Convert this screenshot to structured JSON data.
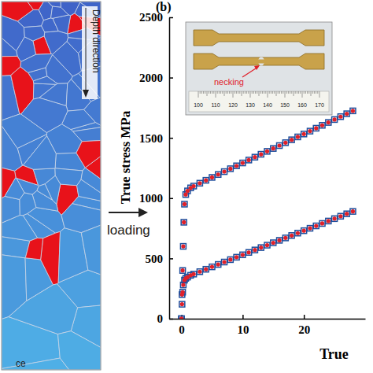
{
  "chart_data": {
    "type": "scatter",
    "panel_label": "(b)",
    "y_label": "True stress MPa",
    "x_label": "True",
    "xlim": [
      -2,
      30
    ],
    "xticks": [
      0,
      10,
      20
    ],
    "ylim": [
      0,
      2500
    ],
    "yticks": [
      0,
      500,
      1000,
      1500,
      2000,
      2500
    ],
    "grid": false,
    "series": [
      {
        "color": "#1f4e9c",
        "marker": "square",
        "x": [
          0,
          0.1,
          0.2,
          0.3,
          0.4,
          0.5,
          0.7,
          1,
          1.5,
          2,
          3,
          4,
          5,
          6,
          7,
          8,
          9,
          10,
          11,
          12,
          13,
          14,
          15,
          16,
          17,
          18,
          19,
          20,
          21,
          22,
          23,
          24,
          25,
          26,
          27,
          28
        ],
        "values": [
          0,
          200,
          400,
          600,
          800,
          950,
          1030,
          1060,
          1085,
          1100,
          1124,
          1148,
          1172,
          1196,
          1220,
          1244,
          1268,
          1292,
          1316,
          1340,
          1364,
          1388,
          1412,
          1436,
          1460,
          1484,
          1508,
          1532,
          1556,
          1580,
          1604,
          1628,
          1652,
          1676,
          1700,
          1724
        ]
      },
      {
        "color": "#1f4e9c",
        "marker": "square",
        "x": [
          0,
          0.1,
          0.2,
          0.3,
          0.5,
          0.7,
          1,
          1.5,
          2,
          3,
          4,
          5,
          6,
          7,
          8,
          9,
          10,
          11,
          12,
          13,
          14,
          15,
          16,
          17,
          18,
          19,
          20,
          21,
          22,
          23,
          24,
          25,
          26,
          27,
          28
        ],
        "values": [
          0,
          120,
          220,
          280,
          320,
          335,
          345,
          360,
          370,
          390,
          410,
          430,
          450,
          470,
          490,
          510,
          530,
          550,
          570,
          590,
          610,
          630,
          650,
          670,
          690,
          710,
          730,
          750,
          770,
          790,
          810,
          830,
          850,
          870,
          890
        ]
      },
      {
        "color": "#e0202a",
        "marker": "circle",
        "x": [
          0,
          0.1,
          0.2,
          0.3,
          0.4,
          0.5,
          0.7,
          1,
          1.5,
          2,
          3,
          4,
          5,
          6,
          7,
          8,
          9,
          10,
          11,
          12,
          13,
          14,
          15,
          16,
          17,
          18,
          19,
          20,
          21,
          22,
          23,
          24,
          25,
          26,
          27,
          28
        ],
        "values": [
          0,
          200,
          400,
          600,
          800,
          950,
          1030,
          1060,
          1085,
          1100,
          1124,
          1148,
          1172,
          1196,
          1220,
          1244,
          1268,
          1292,
          1316,
          1340,
          1364,
          1388,
          1412,
          1436,
          1460,
          1484,
          1508,
          1532,
          1556,
          1580,
          1604,
          1628,
          1652,
          1676,
          1700,
          1724
        ]
      },
      {
        "color": "#e0202a",
        "marker": "circle",
        "x": [
          0,
          0.1,
          0.2,
          0.3,
          0.5,
          0.7,
          1,
          1.5,
          2,
          3,
          4,
          5,
          6,
          7,
          8,
          9,
          10,
          11,
          12,
          13,
          14,
          15,
          16,
          17,
          18,
          19,
          20,
          21,
          22,
          23,
          24,
          25,
          26,
          27,
          28
        ],
        "values": [
          0,
          120,
          220,
          280,
          320,
          335,
          345,
          360,
          370,
          390,
          410,
          430,
          450,
          470,
          490,
          510,
          530,
          550,
          570,
          590,
          610,
          630,
          650,
          670,
          690,
          710,
          730,
          750,
          770,
          790,
          810,
          830,
          850,
          870,
          890
        ]
      }
    ]
  },
  "inset": {
    "label": "necking",
    "ruler_labels": [
      100,
      110,
      120,
      130,
      140,
      150,
      160,
      170
    ]
  },
  "diagram": {
    "depth_label": "Depth direction",
    "loading_label": "loading",
    "surface_label": "ce"
  }
}
